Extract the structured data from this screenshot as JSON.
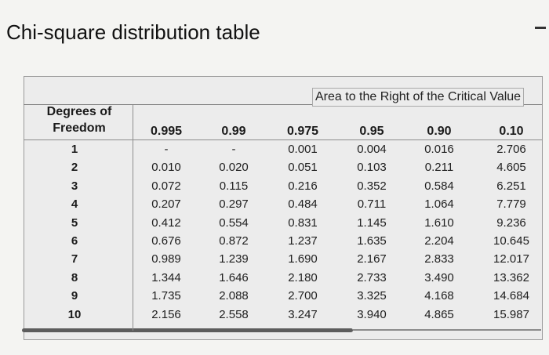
{
  "title": "Chi-square distribution table",
  "area_caption": "Area to the Right of the Critical Value",
  "df_header": [
    "Degrees of",
    "Freedom"
  ],
  "columns": [
    "0.995",
    "0.99",
    "0.975",
    "0.95",
    "0.90",
    "0.10"
  ],
  "rows": [
    {
      "df": "1",
      "values": [
        "-",
        "-",
        "0.001",
        "0.004",
        "0.016",
        "2.706"
      ]
    },
    {
      "df": "2",
      "values": [
        "0.010",
        "0.020",
        "0.051",
        "0.103",
        "0.211",
        "4.605"
      ]
    },
    {
      "df": "3",
      "values": [
        "0.072",
        "0.115",
        "0.216",
        "0.352",
        "0.584",
        "6.251"
      ]
    },
    {
      "df": "4",
      "values": [
        "0.207",
        "0.297",
        "0.484",
        "0.711",
        "1.064",
        "7.779"
      ]
    },
    {
      "df": "5",
      "values": [
        "0.412",
        "0.554",
        "0.831",
        "1.145",
        "1.610",
        "9.236"
      ]
    },
    {
      "df": "6",
      "values": [
        "0.676",
        "0.872",
        "1.237",
        "1.635",
        "2.204",
        "10.645"
      ]
    },
    {
      "df": "7",
      "values": [
        "0.989",
        "1.239",
        "1.690",
        "2.167",
        "2.833",
        "12.017"
      ]
    },
    {
      "df": "8",
      "values": [
        "1.344",
        "1.646",
        "2.180",
        "2.733",
        "3.490",
        "13.362"
      ]
    },
    {
      "df": "9",
      "values": [
        "1.735",
        "2.088",
        "2.700",
        "3.325",
        "4.168",
        "14.684"
      ]
    },
    {
      "df": "10",
      "values": [
        "2.156",
        "2.558",
        "3.247",
        "3.940",
        "4.865",
        "15.987"
      ]
    }
  ]
}
